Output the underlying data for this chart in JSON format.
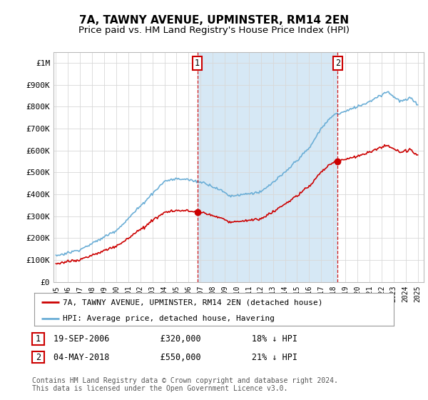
{
  "title": "7A, TAWNY AVENUE, UPMINSTER, RM14 2EN",
  "subtitle": "Price paid vs. HM Land Registry's House Price Index (HPI)",
  "ylim": [
    0,
    1050000
  ],
  "yticks": [
    0,
    100000,
    200000,
    300000,
    400000,
    500000,
    600000,
    700000,
    800000,
    900000,
    1000000
  ],
  "ytick_labels": [
    "£0",
    "£100K",
    "£200K",
    "£300K",
    "£400K",
    "£500K",
    "£600K",
    "£700K",
    "£800K",
    "£900K",
    "£1M"
  ],
  "hpi_color": "#6baed6",
  "hpi_fill_color": "#d6e8f5",
  "price_color": "#cc0000",
  "vline_color": "#cc0000",
  "marker_color": "#cc0000",
  "sale1_year": 2006.72,
  "sale1_price": 320000,
  "sale2_year": 2018.37,
  "sale2_price": 550000,
  "annotation1": {
    "label": "1",
    "date": "19-SEP-2006",
    "price": "£320,000",
    "pct": "18% ↓ HPI"
  },
  "annotation2": {
    "label": "2",
    "date": "04-MAY-2018",
    "price": "£550,000",
    "pct": "21% ↓ HPI"
  },
  "legend_property": "7A, TAWNY AVENUE, UPMINSTER, RM14 2EN (detached house)",
  "legend_hpi": "HPI: Average price, detached house, Havering",
  "footnote1": "Contains HM Land Registry data © Crown copyright and database right 2024.",
  "footnote2": "This data is licensed under the Open Government Licence v3.0.",
  "background_color": "#ffffff",
  "grid_color": "#d8d8d8",
  "title_fontsize": 11,
  "subtitle_fontsize": 9.5
}
